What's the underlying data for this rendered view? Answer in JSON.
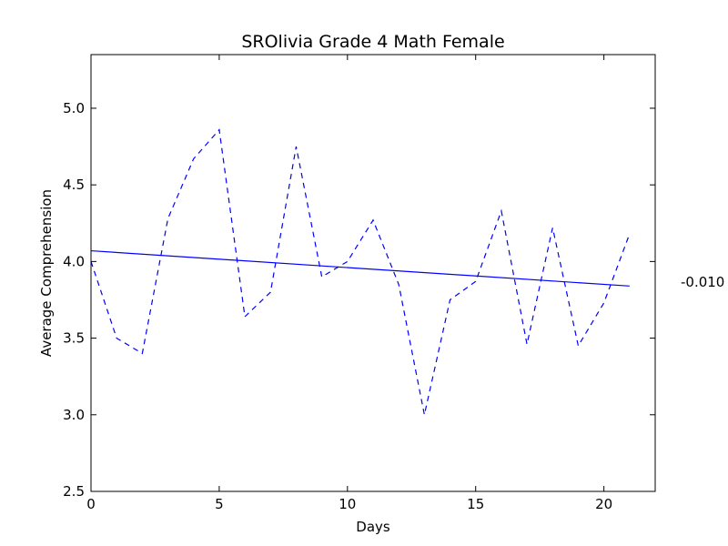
{
  "chart_data": {
    "type": "line",
    "title": "SROlivia Grade 4 Math Female",
    "xlabel": "Days",
    "ylabel": "Average Comprehension",
    "xlim": [
      0,
      22
    ],
    "ylim": [
      2.5,
      5.35
    ],
    "xticks": [
      0,
      5,
      10,
      15,
      20
    ],
    "xtick_labels": [
      "0",
      "5",
      "10",
      "15",
      "20"
    ],
    "yticks": [
      2.5,
      3.0,
      3.5,
      4.0,
      4.5,
      5.0
    ],
    "ytick_labels": [
      "2.5",
      "3.0",
      "3.5",
      "4.0",
      "4.5",
      "5.0"
    ],
    "grid": false,
    "series": [
      {
        "style": "dashed",
        "color": "#0000ff",
        "x": [
          0,
          1,
          2,
          3,
          4,
          5,
          6,
          7,
          8,
          9,
          10,
          11,
          12,
          13,
          14,
          15,
          16,
          17,
          18,
          19,
          20,
          21
        ],
        "y": [
          4.0,
          3.5,
          3.4,
          4.28,
          4.67,
          4.86,
          3.64,
          3.8,
          4.75,
          3.9,
          4.0,
          4.27,
          3.85,
          3.0,
          3.75,
          3.87,
          4.33,
          3.46,
          4.22,
          3.45,
          3.73,
          4.18
        ]
      },
      {
        "style": "solid",
        "color": "#0000ff",
        "x": [
          0,
          21
        ],
        "y": [
          4.07,
          3.84
        ]
      }
    ],
    "annotation": "-0.010"
  }
}
